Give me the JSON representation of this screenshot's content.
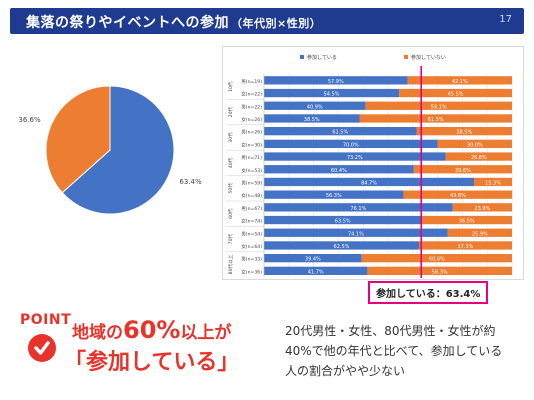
{
  "header": {
    "title": "集落の祭りやイベントへの参加",
    "subtitle": "（年代別×性別）",
    "page_number": "17"
  },
  "colors": {
    "header_bg": "#1f3b8f",
    "series_participate": "#4472c4",
    "series_not_participate": "#ed7d31",
    "accent": "#e6007e",
    "point_red": "#e8332a"
  },
  "chart_data": [
    {
      "type": "pie",
      "slices": [
        {
          "value": 63.4,
          "label": "63.4%",
          "color": "#4472c4"
        },
        {
          "value": 36.6,
          "label": "36.6%",
          "color": "#ed7d31"
        }
      ]
    },
    {
      "type": "bar",
      "orientation": "horizontal",
      "stacked": true,
      "legend_position": "top",
      "series": [
        {
          "name": "参加している",
          "color": "#4472c4",
          "values": [
            57.9,
            54.5,
            40.9,
            38.5,
            61.5,
            70.0,
            73.2,
            60.4,
            84.7,
            56.3,
            76.1,
            63.5,
            74.1,
            62.5,
            39.4,
            41.7
          ]
        },
        {
          "name": "参加していない",
          "color": "#ed7d31",
          "values": [
            42.1,
            45.5,
            59.1,
            61.5,
            38.5,
            30.0,
            26.8,
            39.6,
            15.3,
            43.8,
            23.9,
            36.5,
            25.9,
            37.5,
            60.6,
            58.3
          ]
        }
      ],
      "categories": [
        "男(n=19)",
        "女(n=22)",
        "男(n=22)",
        "女(n=26)",
        "男(n=26)",
        "女(n=30)",
        "男(n=71)",
        "女(n=53)",
        "男(n=59)",
        "女(n=48)",
        "男(n=67)",
        "女(n=74)",
        "男(n=54)",
        "女(n=64)",
        "男(n=33)",
        "女(n=36)"
      ],
      "age_groups": [
        "10代",
        "20代",
        "30代",
        "40代",
        "50代",
        "60代",
        "70代",
        "80代以上"
      ],
      "x_ticks": [
        "0%",
        "10%",
        "20%",
        "30%",
        "40%",
        "50%",
        "60%",
        "70%",
        "80%",
        "90%",
        "100%"
      ],
      "xlim": [
        0,
        100
      ],
      "grid": true,
      "reference_line": {
        "value": 63.4,
        "label": "参加している：63.4%"
      }
    }
  ],
  "point": {
    "label": "POINT",
    "headline_prefix": "地域の",
    "headline_big": "60%",
    "headline_suffix": "以上が",
    "headline2": "「参加している」"
  },
  "summary_lines": [
    "20代男性・女性、80代男性・女性が約",
    "40%で他の年代と比べて、参加している",
    "人の割合がやや少ない"
  ]
}
